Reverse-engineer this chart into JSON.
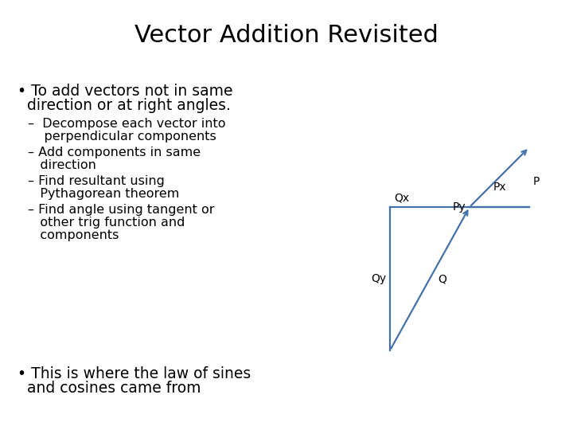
{
  "title": "Vector Addition Revisited",
  "title_fontsize": 22,
  "title_fontweight": "normal",
  "background_color": "#ffffff",
  "text_color": "#000000",
  "diagram_color": "#4472a8",
  "bullet1_line1": "• To add vectors not in same",
  "bullet1_line2": "  direction or at right angles.",
  "bullet1_fontsize": 13.5,
  "sub_bullets": [
    [
      "–  Decompose each vector into",
      "    perpendicular components"
    ],
    [
      "– Add components in same",
      "   direction"
    ],
    [
      "– Find resultant using",
      "   Pythagorean theorem"
    ],
    [
      "– Find angle using tangent or",
      "   other trig function and",
      "   components"
    ]
  ],
  "sub_bullet_fontsize": 11.5,
  "bullet2_line1": "• This is where the law of sines",
  "bullet2_line2": "  and cosines came from",
  "bullet2_fontsize": 13.5,
  "label_fontsize": 10
}
